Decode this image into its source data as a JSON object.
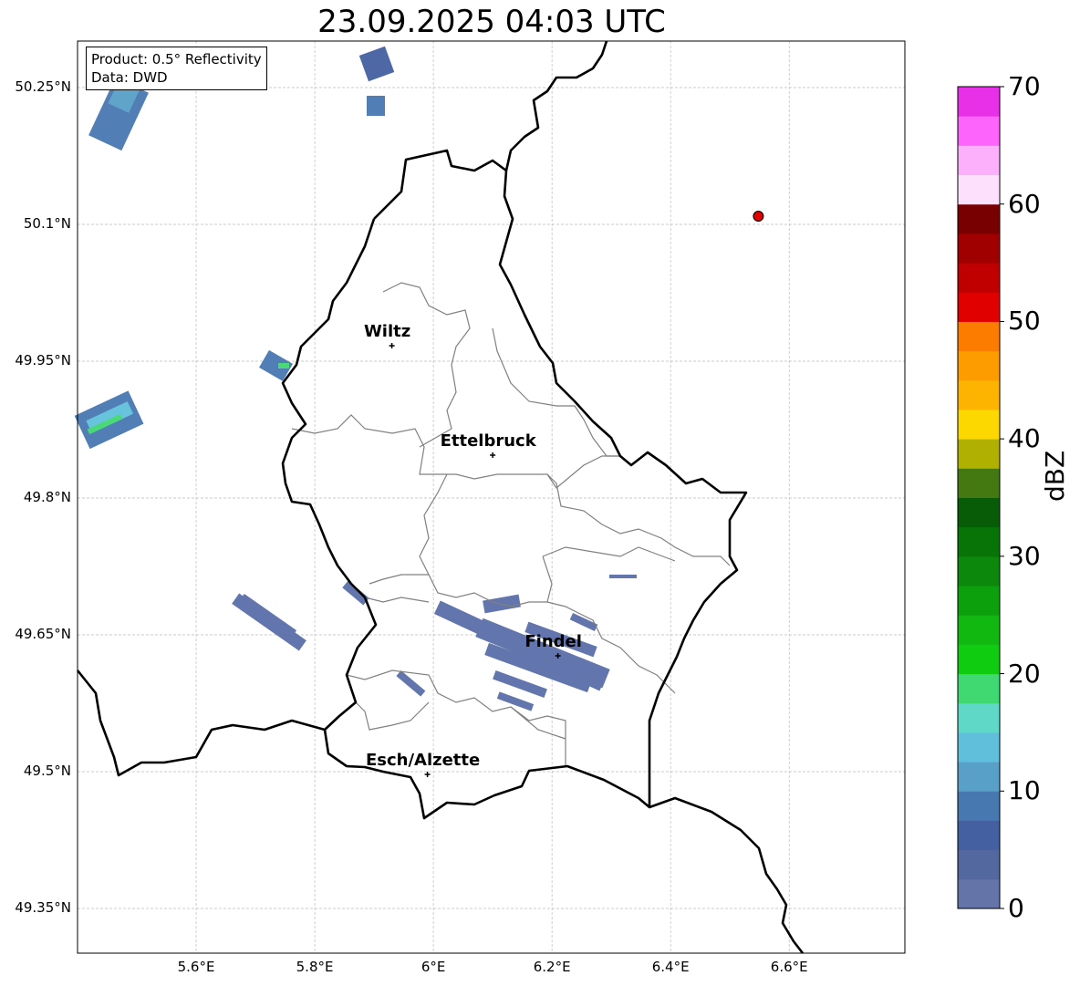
{
  "title": "23.09.2025 04:03 UTC",
  "legend": {
    "product": "Product: 0.5° Reflectivity",
    "data": "Data: DWD"
  },
  "map": {
    "lon_range": [
      5.4,
      6.795
    ],
    "lat_range": [
      49.301,
      50.301
    ],
    "lon_ticks": [
      {
        "v": 5.6,
        "label": "5.6°E"
      },
      {
        "v": 5.8,
        "label": "5.8°E"
      },
      {
        "v": 6.0,
        "label": "6°E"
      },
      {
        "v": 6.2,
        "label": "6.2°E"
      },
      {
        "v": 6.4,
        "label": "6.4°E"
      },
      {
        "v": 6.6,
        "label": "6.6°E"
      }
    ],
    "lat_ticks": [
      {
        "v": 50.25,
        "label": "50.25°N"
      },
      {
        "v": 50.1,
        "label": "50.1°N"
      },
      {
        "v": 49.95,
        "label": "49.95°N"
      },
      {
        "v": 49.8,
        "label": "49.8°N"
      },
      {
        "v": 49.65,
        "label": "49.65°N"
      },
      {
        "v": 49.5,
        "label": "49.5°N"
      },
      {
        "v": 49.35,
        "label": "49.35°N"
      }
    ],
    "cities": [
      {
        "name": "Wiltz",
        "lon": 5.93,
        "lat": 49.967
      },
      {
        "name": "Ettelbruck",
        "lon": 6.1,
        "lat": 49.847
      },
      {
        "name": "Findel",
        "lon": 6.21,
        "lat": 49.627
      },
      {
        "name": "Esch/Alzette",
        "lon": 5.99,
        "lat": 49.497
      }
    ],
    "radar_site": {
      "lon": 6.548,
      "lat": 50.109,
      "color": "#e00000"
    }
  },
  "colorbar": {
    "label": "dBZ",
    "min": 0,
    "max": 70,
    "step": 2.5,
    "ticks": [
      "0",
      "10",
      "20",
      "30",
      "40",
      "50",
      "60",
      "70"
    ],
    "colors": [
      "#6474a8",
      "#5468a0",
      "#4460a0",
      "#4878b0",
      "#58a0c8",
      "#60c0dc",
      "#60d8c8",
      "#40d870",
      "#10cc10",
      "#10b810",
      "#0ca00c",
      "#0c880c",
      "#087408",
      "#085c08",
      "#447810",
      "#b0b000",
      "#fcd800",
      "#fcb400",
      "#fc9c00",
      "#fc7c00",
      "#e00000",
      "#c00000",
      "#a00000",
      "#780000",
      "#fce0fc",
      "#fcb0fc",
      "#fc64fc",
      "#e830e8"
    ]
  }
}
